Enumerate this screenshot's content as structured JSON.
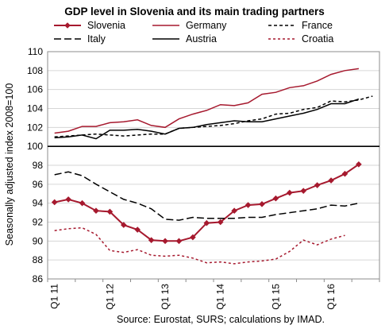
{
  "chart_data": {
    "type": "line",
    "title": "GDP level in Slovenia and its main trading partners",
    "ylabel": "Seasonally adjusted index 2008=100",
    "source": "Source: Eurostat, SURS; calculations by IMAD.",
    "ylim": [
      86,
      110
    ],
    "yticks": [
      "86",
      "88",
      "90",
      "92",
      "94",
      "96",
      "98",
      "100",
      "102",
      "104",
      "106",
      "108",
      "110"
    ],
    "xticks": [
      "Q1 11",
      "Q1 12",
      "Q1 13",
      "Q1 14",
      "Q1 15",
      "Q1 16"
    ],
    "grid": "horizontal",
    "legend_position": "top",
    "x": [
      "2011Q1",
      "2011Q2",
      "2011Q3",
      "2011Q4",
      "2012Q1",
      "2012Q2",
      "2012Q3",
      "2012Q4",
      "2013Q1",
      "2013Q2",
      "2013Q3",
      "2013Q4",
      "2014Q1",
      "2014Q2",
      "2014Q3",
      "2014Q4",
      "2015Q1",
      "2015Q2",
      "2015Q3",
      "2015Q4",
      "2016Q1",
      "2016Q2",
      "2016Q3",
      "2016Q4"
    ],
    "series": [
      {
        "name": "Slovenia",
        "color": "#a6192e",
        "dash": "",
        "marker": "diamond",
        "values": [
          94.1,
          94.4,
          94.0,
          93.2,
          93.1,
          91.7,
          91.2,
          90.1,
          90.0,
          90.0,
          90.4,
          91.9,
          92.0,
          93.2,
          93.8,
          93.9,
          94.5,
          95.1,
          95.3,
          95.9,
          96.4,
          97.1,
          98.1,
          null
        ]
      },
      {
        "name": "Germany",
        "color": "#a6192e",
        "dash": "",
        "marker": "none",
        "values": [
          101.4,
          101.6,
          102.1,
          102.1,
          102.5,
          102.6,
          102.8,
          102.2,
          102.0,
          102.9,
          103.4,
          103.8,
          104.4,
          104.3,
          104.6,
          105.5,
          105.7,
          106.2,
          106.4,
          106.9,
          107.6,
          108.0,
          108.2,
          null
        ]
      },
      {
        "name": "France",
        "color": "#000000",
        "dash": "4,3",
        "marker": "none",
        "values": [
          101.0,
          101.1,
          101.2,
          101.3,
          101.2,
          101.1,
          101.2,
          101.3,
          101.3,
          101.9,
          102.0,
          102.1,
          102.2,
          102.4,
          102.7,
          102.9,
          103.4,
          103.5,
          103.9,
          104.1,
          104.8,
          104.7,
          104.9,
          105.3
        ]
      },
      {
        "name": "Italy",
        "color": "#000000",
        "dash": "9,4",
        "marker": "none",
        "values": [
          97.0,
          97.3,
          96.9,
          96.0,
          95.2,
          94.4,
          94.0,
          93.4,
          92.3,
          92.2,
          92.5,
          92.4,
          92.4,
          92.4,
          92.5,
          92.5,
          92.8,
          93.0,
          93.2,
          93.4,
          93.8,
          93.7,
          94.0,
          null
        ]
      },
      {
        "name": "Austria",
        "color": "#000000",
        "dash": "",
        "marker": "none",
        "values": [
          100.9,
          101.0,
          101.2,
          100.8,
          101.7,
          101.7,
          101.8,
          101.6,
          101.3,
          101.9,
          102.0,
          102.3,
          102.5,
          102.7,
          102.6,
          102.6,
          102.9,
          103.2,
          103.5,
          103.9,
          104.5,
          104.5,
          105.0,
          null
        ]
      },
      {
        "name": "Croatia",
        "color": "#a6192e",
        "dash": "3,3",
        "marker": "none",
        "values": [
          91.1,
          91.3,
          91.4,
          90.7,
          89.0,
          88.8,
          89.1,
          88.5,
          88.4,
          88.5,
          88.2,
          87.7,
          87.8,
          87.6,
          87.8,
          87.9,
          88.1,
          88.9,
          90.1,
          89.6,
          90.2,
          90.6,
          null,
          null
        ]
      }
    ]
  }
}
